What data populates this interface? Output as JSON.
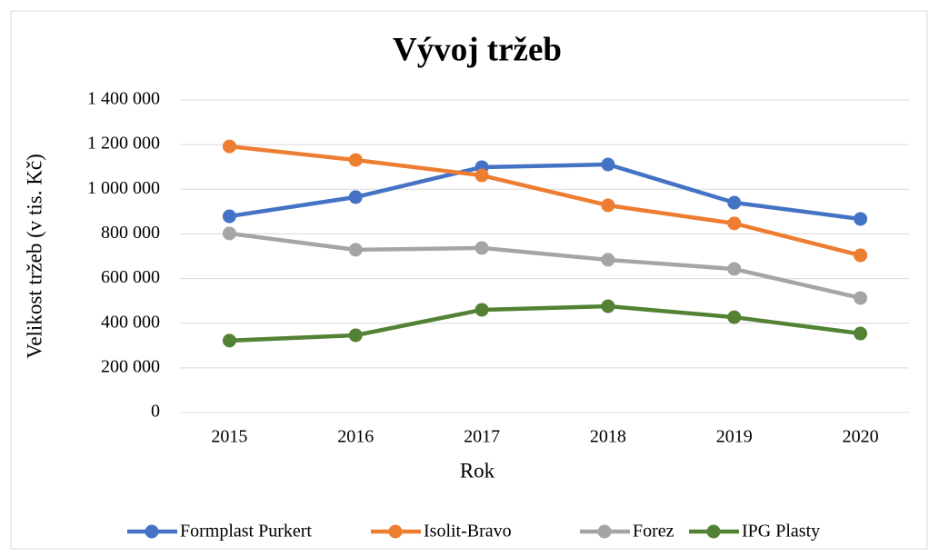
{
  "chart_data": {
    "type": "line",
    "title": "Vývoj tržeb",
    "x_label": "Rok",
    "y_label": "Velikost tržeb (v tis. Kč)",
    "categories": [
      "2015",
      "2016",
      "2017",
      "2018",
      "2019",
      "2020"
    ],
    "series": [
      {
        "name": "Formplast Purkert",
        "color": "#4472c4",
        "values": [
          879000,
          965000,
          1099000,
          1111000,
          940000,
          867000
        ]
      },
      {
        "name": "Isolit-Bravo",
        "color": "#ed7d31",
        "values": [
          1192000,
          1131000,
          1062000,
          928000,
          847000,
          704000
        ]
      },
      {
        "name": "Forez",
        "color": "#a5a5a5",
        "values": [
          802000,
          729000,
          737000,
          684000,
          643000,
          513000
        ]
      },
      {
        "name": "IPG Plasty",
        "color": "#548235",
        "values": [
          322000,
          346000,
          460000,
          476000,
          427000,
          354000
        ]
      }
    ],
    "ylim": [
      0,
      1400000
    ],
    "yticks": [
      0,
      {
        "value": 200000,
        "label": "200 000"
      },
      {
        "value": 400000,
        "label": "400 000"
      },
      {
        "value": 600000,
        "label": "600 000"
      },
      {
        "value": 800000,
        "label": "800 000"
      },
      {
        "value": 1000000,
        "label": "1 000 000"
      },
      {
        "value": 1200000,
        "label": "1 200 000"
      },
      {
        "value": 1400000,
        "label": "1 400 000"
      }
    ],
    "grid": true,
    "legend": "bottom"
  }
}
